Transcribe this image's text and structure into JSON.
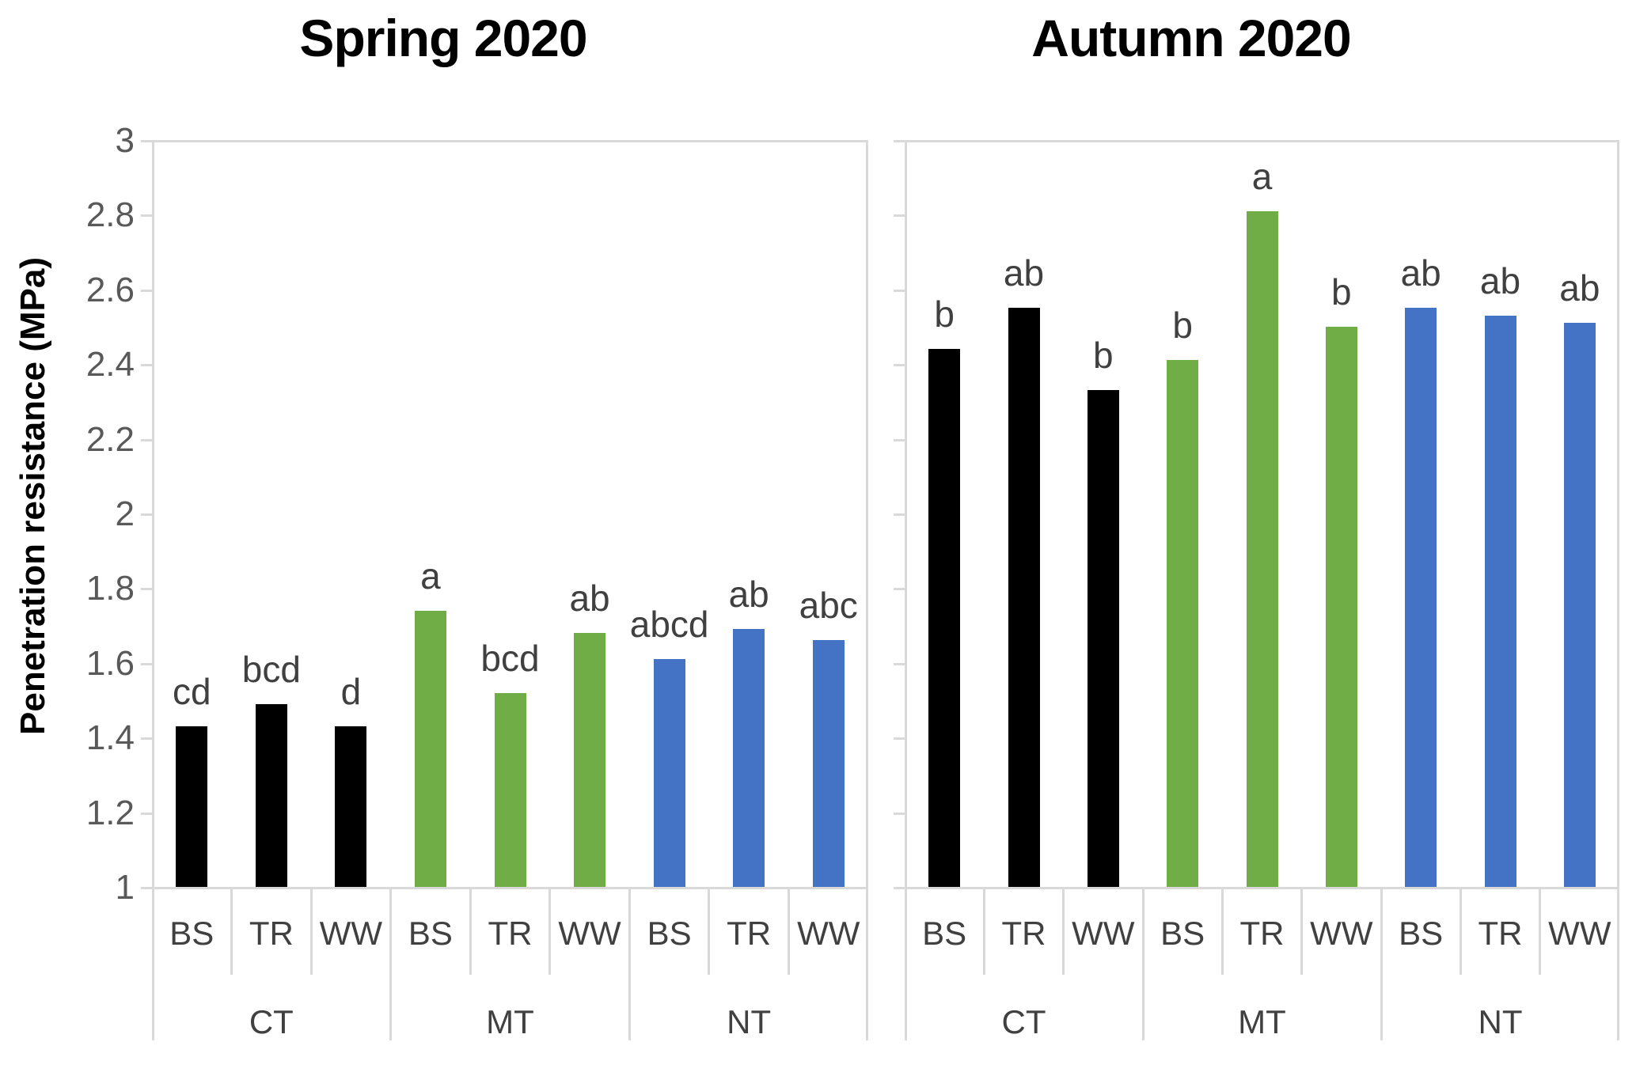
{
  "figure": {
    "background": "#ffffff",
    "axis_line_color": "#d9d9d9",
    "tick_label_color": "#595959",
    "annotation_color": "#404040"
  },
  "chart_data": [
    {
      "type": "bar",
      "title": "Spring 2020",
      "ylabel": "Penetration resistance (MPa)",
      "ylim": [
        1,
        3
      ],
      "ytick_step": 0.2,
      "yticks": [
        "3",
        "2.8",
        "2.6",
        "2.4",
        "2.2",
        "2",
        "1.8",
        "1.6",
        "1.4",
        "1.2",
        "1"
      ],
      "show_y_tick_labels": true,
      "grid": false,
      "legend": "none",
      "groups": [
        "CT",
        "MT",
        "NT"
      ],
      "categories": [
        "BS",
        "TR",
        "WW"
      ],
      "series": [
        {
          "group": "CT",
          "color": "#000000",
          "values": [
            1.43,
            1.49,
            1.43
          ],
          "letters": [
            "cd",
            "bcd",
            "d"
          ]
        },
        {
          "group": "MT",
          "color": "#70AD47",
          "values": [
            1.74,
            1.52,
            1.68
          ],
          "letters": [
            "a",
            "bcd",
            "ab"
          ]
        },
        {
          "group": "NT",
          "color": "#4472C4",
          "values": [
            1.61,
            1.69,
            1.66
          ],
          "letters": [
            "abcd",
            "ab",
            "abc"
          ]
        }
      ]
    },
    {
      "type": "bar",
      "title": "Autumn 2020",
      "ylabel": "",
      "ylim": [
        1,
        3
      ],
      "ytick_step": 0.2,
      "yticks": [
        "3",
        "2.8",
        "2.6",
        "2.4",
        "2.2",
        "2",
        "1.8",
        "1.6",
        "1.4",
        "1.2",
        "1"
      ],
      "show_y_tick_labels": false,
      "grid": false,
      "legend": "none",
      "groups": [
        "CT",
        "MT",
        "NT"
      ],
      "categories": [
        "BS",
        "TR",
        "WW"
      ],
      "series": [
        {
          "group": "CT",
          "color": "#000000",
          "values": [
            2.44,
            2.55,
            2.33
          ],
          "letters": [
            "b",
            "ab",
            "b"
          ]
        },
        {
          "group": "MT",
          "color": "#70AD47",
          "values": [
            2.41,
            2.81,
            2.5
          ],
          "letters": [
            "b",
            "a",
            "b"
          ]
        },
        {
          "group": "NT",
          "color": "#4472C4",
          "values": [
            2.55,
            2.53,
            2.51
          ],
          "letters": [
            "ab",
            "ab",
            "ab"
          ]
        }
      ]
    }
  ]
}
